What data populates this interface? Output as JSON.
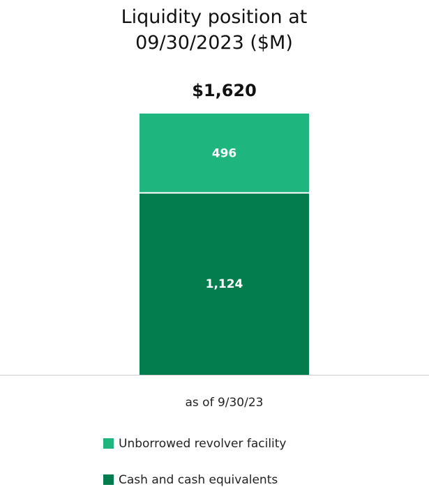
{
  "chart_data": {
    "type": "stacked_bar",
    "title": "Liquidity position at 09/30/2023 ($M)",
    "categories": [
      "as of 9/30/23"
    ],
    "series": [
      {
        "name": "Cash and cash equivalents",
        "color": "#047d4e",
        "values": [
          1124
        ],
        "value_labels": [
          "1,124"
        ]
      },
      {
        "name": "Unborrowed revolver facility",
        "color": "#1fb57f",
        "values": [
          496
        ],
        "value_labels": [
          "496"
        ]
      }
    ],
    "total": 1620,
    "total_label": "$1,620",
    "legend": "bottom"
  }
}
